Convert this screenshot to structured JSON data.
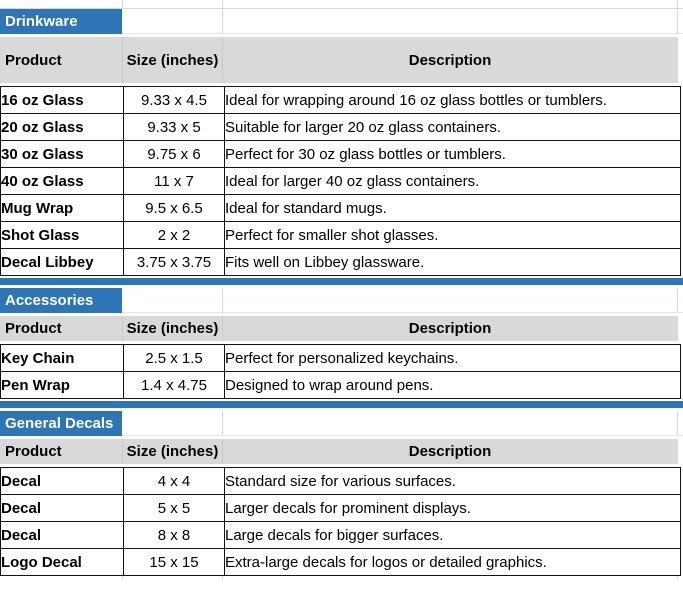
{
  "colors": {
    "accent_blue": "#2E75B6",
    "header_gray": "#D9D9D9",
    "grid_line": "#D9D9D9",
    "table_border": "#141414"
  },
  "columns": [
    "Product",
    "Size (inches)",
    "Description"
  ],
  "sections": [
    {
      "title": "Drinkware",
      "rows": [
        {
          "product": "16 oz Glass",
          "size": "9.33 x 4.5",
          "description": "Ideal for wrapping around 16 oz glass bottles or tumblers."
        },
        {
          "product": "20 oz Glass",
          "size": "9.33 x 5",
          "description": "Suitable for larger 20 oz glass containers."
        },
        {
          "product": "30 oz Glass",
          "size": "9.75 x 6",
          "description": "Perfect for 30 oz glass bottles or tumblers."
        },
        {
          "product": "40 oz Glass",
          "size": "11 x 7",
          "description": "Ideal for larger 40 oz glass containers."
        },
        {
          "product": "Mug Wrap",
          "size": "9.5 x 6.5",
          "description": "Ideal for standard mugs."
        },
        {
          "product": "Shot Glass",
          "size": "2 x 2",
          "description": "Perfect for smaller shot glasses."
        },
        {
          "product": "Decal Libbey",
          "size": "3.75 x 3.75",
          "description": "Fits well on Libbey glassware."
        }
      ]
    },
    {
      "title": "Accessories",
      "rows": [
        {
          "product": "Key Chain",
          "size": "2.5 x 1.5",
          "description": "Perfect for personalized keychains."
        },
        {
          "product": "Pen Wrap",
          "size": "1.4 x 4.75",
          "description": "Designed to wrap around pens."
        }
      ]
    },
    {
      "title": "General Decals",
      "rows": [
        {
          "product": "Decal",
          "size": "4 x 4",
          "description": "Standard size for various surfaces."
        },
        {
          "product": "Decal",
          "size": "5 x 5",
          "description": "Larger decals for prominent displays."
        },
        {
          "product": "Decal",
          "size": "8 x 8",
          "description": "Large decals for bigger surfaces."
        },
        {
          "product": "Logo Decal",
          "size": "15 x 15",
          "description": "Extra-large decals for logos or detailed graphics."
        }
      ]
    }
  ]
}
